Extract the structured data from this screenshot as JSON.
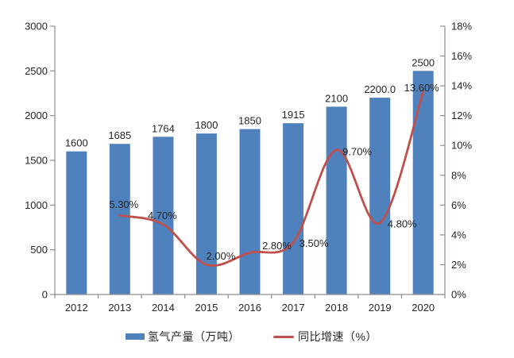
{
  "page": {
    "background": "#ffffff"
  },
  "chart_data": {
    "type": "bar",
    "title": "",
    "categories": [
      "2012",
      "2013",
      "2014",
      "2015",
      "2016",
      "2017",
      "2018",
      "2019",
      "2020"
    ],
    "series": [
      {
        "name": "氢气产量（万吨）",
        "type": "bar",
        "axis": "left",
        "color": "#4f81bd",
        "values": [
          1600,
          1685,
          1764,
          1800,
          1850,
          1915,
          2100,
          2200,
          2500
        ],
        "labels": [
          "1600",
          "1685",
          "1764",
          "1800",
          "1850",
          "1915",
          "2100",
          "2200.0",
          "2500"
        ]
      },
      {
        "name": "同比增速（%）",
        "type": "line",
        "axis": "right",
        "color": "#c0504d",
        "smooth": true,
        "values": [
          null,
          5.3,
          4.7,
          2.0,
          2.8,
          3.5,
          9.7,
          4.8,
          13.6
        ],
        "labels": [
          "",
          "5.30%",
          "4.70%",
          "2.00%",
          "2.80%",
          "3.50%",
          "9.70%",
          "4.80%",
          "13.60%"
        ]
      }
    ],
    "left_axis": {
      "min": 0,
      "max": 3000,
      "step": 500,
      "tick_labels": [
        "0",
        "500",
        "1000",
        "1500",
        "2000",
        "2500",
        "3000"
      ]
    },
    "right_axis": {
      "min": 0,
      "max": 18,
      "step": 2,
      "tick_labels": [
        "0%",
        "2%",
        "4%",
        "6%",
        "8%",
        "10%",
        "12%",
        "14%",
        "16%",
        "18%"
      ]
    },
    "legend": {
      "position": "bottom"
    },
    "grid": false,
    "axis_color": "#8e8e8e",
    "text_color": "#262626"
  }
}
